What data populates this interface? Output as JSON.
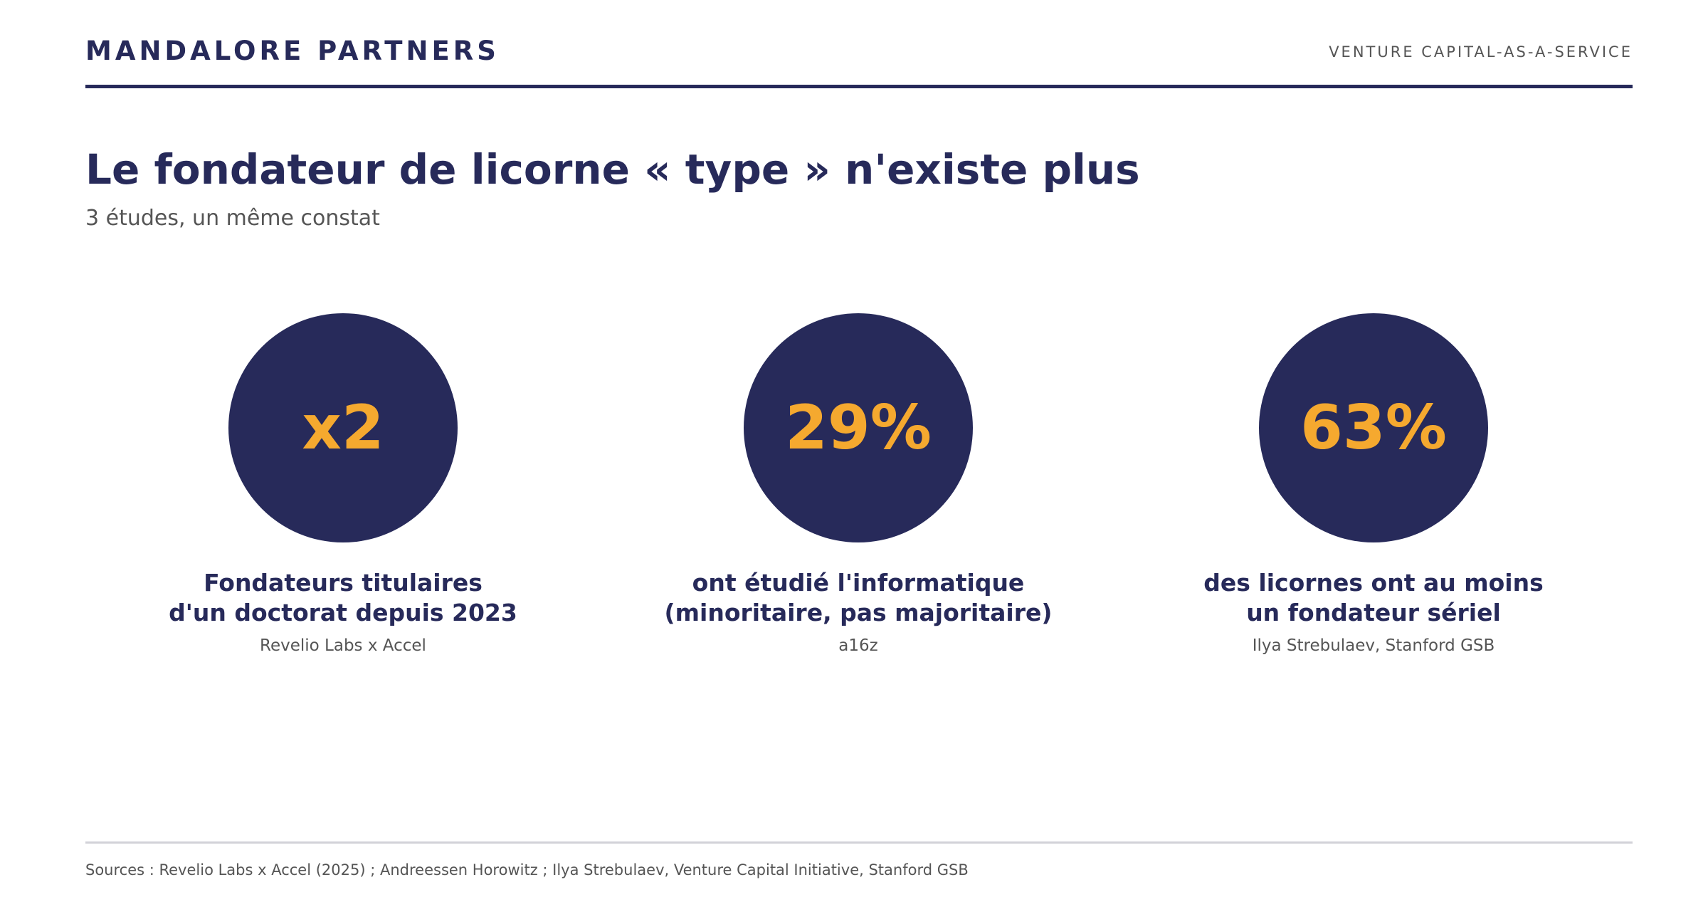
{
  "header": {
    "brand": "MANDALORE PARTNERS",
    "tagline": "VENTURE CAPITAL-AS-A-SERVICE"
  },
  "title": "Le fondateur de licorne « type » n'existe plus",
  "subtitle": "3 études, un même constat",
  "stats": [
    {
      "value": "x2",
      "label_line1": "Fondateurs titulaires",
      "label_line2": "d'un doctorat depuis 2023",
      "source": "Revelio Labs x Accel"
    },
    {
      "value": "29%",
      "label_line1": "ont étudié l'informatique",
      "label_line2": "(minoritaire, pas majoritaire)",
      "source": "a16z"
    },
    {
      "value": "63%",
      "label_line1": "des licornes ont au moins",
      "label_line2": "un fondateur sériel",
      "source": "Ilya Strebulaev, Stanford GSB"
    }
  ],
  "footer": {
    "sources": "Sources : Revelio Labs x Accel (2025) ; Andreessen Horowitz ; Ilya Strebulaev, Venture Capital Initiative, Stanford GSB"
  },
  "colors": {
    "navy": "#272a5a",
    "accent": "#f5a92f",
    "muted_text": "#555555"
  }
}
